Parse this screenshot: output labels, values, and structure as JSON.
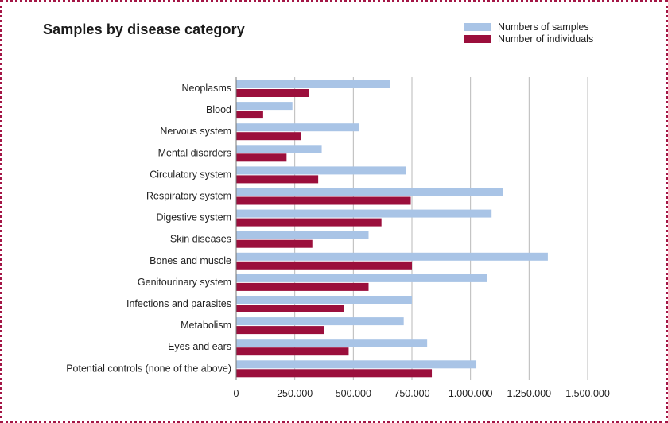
{
  "colors": {
    "samples": "#a9c4e6",
    "individuals": "#9b0f3c",
    "grid": "#b9b9b9",
    "frame": "#a31545"
  },
  "chart_data": {
    "type": "bar",
    "orientation": "horizontal",
    "title": "Samples by disease category",
    "categories": [
      "Neoplasms",
      "Blood",
      "Nervous system",
      "Mental disorders",
      "Circulatory system",
      "Respiratory system",
      "Digestive system",
      "Skin diseases",
      "Bones and muscle",
      "Genitourinary system",
      "Infections and parasites",
      "Metabolism",
      "Eyes and ears",
      "Potential controls (none of the above)"
    ],
    "series": [
      {
        "name": "Numbers of samples",
        "values": [
          655000,
          240000,
          525000,
          365000,
          725000,
          1140000,
          1090000,
          565000,
          1330000,
          1070000,
          750000,
          715000,
          815000,
          1025000
        ]
      },
      {
        "name": "Number of individuals",
        "values": [
          310000,
          115000,
          275000,
          215000,
          350000,
          745000,
          620000,
          325000,
          750000,
          565000,
          460000,
          375000,
          480000,
          835000
        ]
      }
    ],
    "xlim": [
      0,
      1500000
    ],
    "xticks": [
      0,
      250000,
      500000,
      750000,
      1000000,
      1250000,
      1500000
    ],
    "xtick_labels": [
      "0",
      "250.000",
      "500.000",
      "750.000",
      "1.000.000",
      "1.250.000",
      "1.500.000"
    ],
    "xlabel": "",
    "ylabel": "",
    "grid": true,
    "legend": "top-right"
  }
}
